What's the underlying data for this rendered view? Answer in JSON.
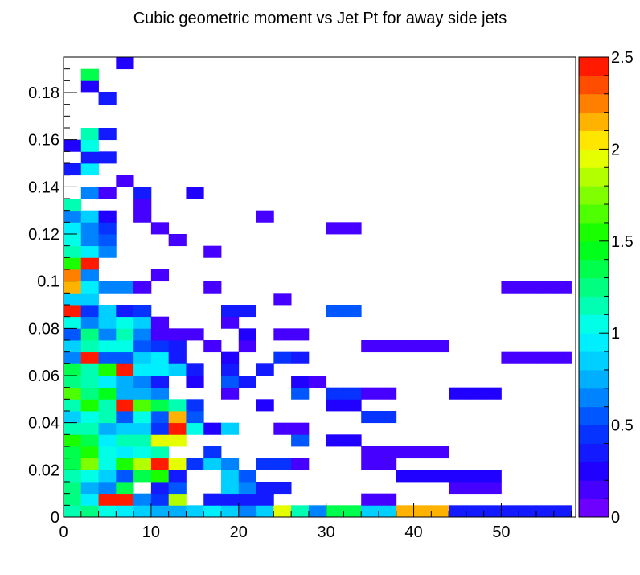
{
  "chart_data": {
    "type": "heatmap",
    "title": "Cubic geometric moment vs Jet Pt for away side jets",
    "xlabel": "",
    "ylabel": "",
    "xlim": [
      0,
      58.5
    ],
    "ylim": [
      0,
      0.195
    ],
    "x_bin_width": 2.0,
    "y_bin_width": 0.005,
    "z_range": [
      0,
      2.5
    ],
    "x_ticks": [
      "0",
      "10",
      "20",
      "30",
      "40",
      "50"
    ],
    "y_ticks": [
      "0",
      "0.02",
      "0.04",
      "0.06",
      "0.08",
      "0.1",
      "0.12",
      "0.14",
      "0.16",
      "0.18"
    ],
    "z_ticks": [
      "0",
      "0.5",
      "1",
      "1.5",
      "2",
      "2.5"
    ],
    "grid": false,
    "colorbar": "right",
    "cells": [
      [
        0,
        0,
        1.15
      ],
      [
        2,
        0,
        1.2
      ],
      [
        4,
        0,
        1.05
      ],
      [
        6,
        0,
        0.95
      ],
      [
        8,
        0,
        0.85
      ],
      [
        10,
        0,
        0.72
      ],
      [
        12,
        0,
        0.75
      ],
      [
        14,
        0,
        0.85
      ],
      [
        16,
        0,
        0.95
      ],
      [
        18,
        0,
        0.8
      ],
      [
        20,
        0,
        0.6
      ],
      [
        22,
        0,
        0.85
      ],
      [
        24,
        0,
        1.95
      ],
      [
        26,
        0,
        1.15
      ],
      [
        28,
        0,
        0.6
      ],
      [
        30,
        0,
        1.3
      ],
      [
        32,
        0,
        1.3
      ],
      [
        34,
        0,
        0.85
      ],
      [
        36,
        0,
        0.85
      ],
      [
        38,
        0,
        2.15
      ],
      [
        40,
        0,
        2.15
      ],
      [
        42,
        0,
        2.15
      ],
      [
        44,
        0,
        0.35
      ],
      [
        46,
        0,
        0.35
      ],
      [
        48,
        0,
        0.35
      ],
      [
        50,
        0,
        0.3
      ],
      [
        52,
        0,
        0.3
      ],
      [
        54,
        0,
        0.3
      ],
      [
        56,
        0,
        0.3
      ],
      [
        0,
        0.005,
        1.25
      ],
      [
        2,
        0.005,
        0.9
      ],
      [
        4,
        0.005,
        2.5
      ],
      [
        6,
        0.005,
        2.5
      ],
      [
        8,
        0.005,
        0.65
      ],
      [
        10,
        0.005,
        0.4
      ],
      [
        12,
        0.005,
        1.8
      ],
      [
        16,
        0.005,
        0.35
      ],
      [
        18,
        0.005,
        0.35
      ],
      [
        20,
        0.005,
        0.3
      ],
      [
        22,
        0.005,
        0.3
      ],
      [
        34,
        0.005,
        0.1
      ],
      [
        36,
        0.005,
        0.1
      ],
      [
        0,
        0.01,
        1.25
      ],
      [
        2,
        0.01,
        0.75
      ],
      [
        4,
        0.01,
        0.6
      ],
      [
        6,
        0.01,
        1.35
      ],
      [
        10,
        0.01,
        0.3
      ],
      [
        12,
        0.01,
        0.55
      ],
      [
        18,
        0.01,
        0.8
      ],
      [
        20,
        0.01,
        0.6
      ],
      [
        22,
        0.01,
        0.3
      ],
      [
        24,
        0.01,
        0.3
      ],
      [
        44,
        0.01,
        0.1
      ],
      [
        46,
        0.01,
        0.1
      ],
      [
        48,
        0.01,
        0.1
      ],
      [
        0,
        0.015,
        1.1
      ],
      [
        2,
        0.015,
        1.0
      ],
      [
        4,
        0.015,
        0.85
      ],
      [
        6,
        0.015,
        0.55
      ],
      [
        8,
        0.015,
        1.3
      ],
      [
        10,
        0.015,
        1.5
      ],
      [
        12,
        0.015,
        0.3
      ],
      [
        18,
        0.015,
        0.8
      ],
      [
        20,
        0.015,
        0.5
      ],
      [
        38,
        0.015,
        0.2
      ],
      [
        40,
        0.015,
        0.2
      ],
      [
        42,
        0.015,
        0.2
      ],
      [
        44,
        0.015,
        0.2
      ],
      [
        46,
        0.015,
        0.2
      ],
      [
        48,
        0.015,
        0.2
      ],
      [
        0,
        0.02,
        1.3
      ],
      [
        2,
        0.02,
        1.75
      ],
      [
        4,
        0.02,
        1.0
      ],
      [
        6,
        0.02,
        1.55
      ],
      [
        8,
        0.02,
        1.85
      ],
      [
        10,
        0.02,
        2.4
      ],
      [
        12,
        0.02,
        1.9
      ],
      [
        14,
        0.02,
        0.4
      ],
      [
        16,
        0.02,
        0.85
      ],
      [
        18,
        0.02,
        0.6
      ],
      [
        22,
        0.02,
        0.4
      ],
      [
        24,
        0.02,
        0.4
      ],
      [
        26,
        0.02,
        0.15
      ],
      [
        34,
        0.02,
        0.1
      ],
      [
        36,
        0.02,
        0.1
      ],
      [
        0,
        0.025,
        1.35
      ],
      [
        2,
        0.025,
        1.5
      ],
      [
        4,
        0.025,
        1.0
      ],
      [
        6,
        0.025,
        0.95
      ],
      [
        8,
        0.025,
        1.0
      ],
      [
        10,
        0.025,
        1.1
      ],
      [
        16,
        0.025,
        0.4
      ],
      [
        34,
        0.025,
        0.15
      ],
      [
        36,
        0.025,
        0.15
      ],
      [
        38,
        0.025,
        0.1
      ],
      [
        40,
        0.025,
        0.1
      ],
      [
        42,
        0.025,
        0.1
      ],
      [
        0,
        0.03,
        1.55
      ],
      [
        2,
        0.03,
        1.3
      ],
      [
        4,
        0.03,
        0.9
      ],
      [
        6,
        0.03,
        1.15
      ],
      [
        8,
        0.03,
        1.15
      ],
      [
        10,
        0.03,
        1.9
      ],
      [
        12,
        0.03,
        1.9
      ],
      [
        26,
        0.03,
        0.55
      ],
      [
        30,
        0.03,
        0.2
      ],
      [
        32,
        0.03,
        0.2
      ],
      [
        0,
        0.035,
        1.15
      ],
      [
        2,
        0.035,
        1.1
      ],
      [
        4,
        0.035,
        0.75
      ],
      [
        6,
        0.035,
        0.8
      ],
      [
        8,
        0.035,
        0.85
      ],
      [
        10,
        0.035,
        0.4
      ],
      [
        12,
        0.035,
        2.5
      ],
      [
        14,
        0.035,
        1.05
      ],
      [
        16,
        0.035,
        0.2
      ],
      [
        18,
        0.035,
        0.85
      ],
      [
        24,
        0.035,
        0.15
      ],
      [
        26,
        0.035,
        0.15
      ],
      [
        0,
        0.04,
        0.85
      ],
      [
        2,
        0.04,
        1.0
      ],
      [
        4,
        0.04,
        1.1
      ],
      [
        6,
        0.04,
        0.55
      ],
      [
        8,
        0.04,
        1.05
      ],
      [
        10,
        0.04,
        0.55
      ],
      [
        12,
        0.04,
        2.1
      ],
      [
        14,
        0.04,
        0.55
      ],
      [
        34,
        0.04,
        0.45
      ],
      [
        36,
        0.04,
        0.45
      ],
      [
        0,
        0.045,
        1.15
      ],
      [
        2,
        0.045,
        1.5
      ],
      [
        4,
        0.045,
        1.15
      ],
      [
        6,
        0.045,
        2.45
      ],
      [
        8,
        0.045,
        1.6
      ],
      [
        10,
        0.045,
        1.4
      ],
      [
        12,
        0.045,
        1.1
      ],
      [
        14,
        0.045,
        0.4
      ],
      [
        22,
        0.045,
        0.2
      ],
      [
        30,
        0.045,
        0.2
      ],
      [
        32,
        0.045,
        0.2
      ],
      [
        0,
        0.05,
        1.65
      ],
      [
        2,
        0.05,
        1.2
      ],
      [
        4,
        0.05,
        1.45
      ],
      [
        6,
        0.05,
        0.75
      ],
      [
        8,
        0.05,
        0.75
      ],
      [
        10,
        0.05,
        0.6
      ],
      [
        18,
        0.05,
        0.15
      ],
      [
        26,
        0.05,
        0.5
      ],
      [
        30,
        0.05,
        0.4
      ],
      [
        32,
        0.05,
        0.4
      ],
      [
        34,
        0.05,
        0.15
      ],
      [
        36,
        0.05,
        0.15
      ],
      [
        44,
        0.05,
        0.2
      ],
      [
        46,
        0.05,
        0.2
      ],
      [
        48,
        0.05,
        0.2
      ],
      [
        0,
        0.055,
        1.2
      ],
      [
        2,
        0.055,
        1.1
      ],
      [
        4,
        0.055,
        0.9
      ],
      [
        6,
        0.055,
        0.75
      ],
      [
        8,
        0.055,
        0.6
      ],
      [
        10,
        0.055,
        0.35
      ],
      [
        14,
        0.055,
        0.2
      ],
      [
        18,
        0.055,
        0.5
      ],
      [
        20,
        0.055,
        0.3
      ],
      [
        26,
        0.055,
        0.2
      ],
      [
        28,
        0.055,
        0.1
      ],
      [
        0,
        0.06,
        1.3
      ],
      [
        2,
        0.06,
        1.15
      ],
      [
        4,
        0.06,
        1.55
      ],
      [
        6,
        0.06,
        2.4
      ],
      [
        8,
        0.06,
        0.95
      ],
      [
        10,
        0.06,
        0.9
      ],
      [
        12,
        0.06,
        0.8
      ],
      [
        14,
        0.06,
        0.3
      ],
      [
        18,
        0.06,
        0.3
      ],
      [
        22,
        0.06,
        0.35
      ],
      [
        0,
        0.065,
        0.7
      ],
      [
        2,
        0.065,
        2.5
      ],
      [
        4,
        0.065,
        0.55
      ],
      [
        6,
        0.065,
        0.55
      ],
      [
        8,
        0.065,
        0.8
      ],
      [
        10,
        0.065,
        0.9
      ],
      [
        12,
        0.065,
        0.3
      ],
      [
        18,
        0.065,
        0.2
      ],
      [
        24,
        0.065,
        0.4
      ],
      [
        26,
        0.065,
        0.3
      ],
      [
        50,
        0.065,
        0.1
      ],
      [
        52,
        0.065,
        0.1
      ],
      [
        54,
        0.065,
        0.1
      ],
      [
        56,
        0.065,
        0.1
      ],
      [
        0,
        0.07,
        0.85
      ],
      [
        2,
        0.07,
        1.1
      ],
      [
        4,
        0.07,
        1.05
      ],
      [
        6,
        0.07,
        1.0
      ],
      [
        8,
        0.07,
        0.5
      ],
      [
        10,
        0.07,
        0.45
      ],
      [
        12,
        0.07,
        0.3
      ],
      [
        16,
        0.07,
        0.15
      ],
      [
        20,
        0.07,
        0.1
      ],
      [
        34,
        0.07,
        0.1
      ],
      [
        36,
        0.07,
        0.1
      ],
      [
        38,
        0.07,
        0.1
      ],
      [
        40,
        0.07,
        0.1
      ],
      [
        42,
        0.07,
        0.1
      ],
      [
        0,
        0.075,
        0.55
      ],
      [
        2,
        0.075,
        1.25
      ],
      [
        4,
        0.075,
        0.7
      ],
      [
        6,
        0.075,
        1.15
      ],
      [
        8,
        0.075,
        0.6
      ],
      [
        10,
        0.075,
        0.15
      ],
      [
        12,
        0.075,
        0.15
      ],
      [
        14,
        0.075,
        0.15
      ],
      [
        20,
        0.075,
        0.2
      ],
      [
        24,
        0.075,
        0.15
      ],
      [
        26,
        0.075,
        0.15
      ],
      [
        0,
        0.08,
        1.05
      ],
      [
        2,
        0.08,
        0.7
      ],
      [
        4,
        0.08,
        0.8
      ],
      [
        6,
        0.08,
        1.05
      ],
      [
        8,
        0.08,
        0.8
      ],
      [
        10,
        0.08,
        0.15
      ],
      [
        18,
        0.08,
        0.15
      ],
      [
        0,
        0.085,
        2.4
      ],
      [
        2,
        0.085,
        0.4
      ],
      [
        4,
        0.085,
        0.85
      ],
      [
        6,
        0.085,
        0.3
      ],
      [
        8,
        0.085,
        0.4
      ],
      [
        18,
        0.085,
        0.3
      ],
      [
        20,
        0.085,
        0.3
      ],
      [
        30,
        0.085,
        0.55
      ],
      [
        32,
        0.085,
        0.55
      ],
      [
        0,
        0.09,
        0.85
      ],
      [
        2,
        0.09,
        0.85
      ],
      [
        24,
        0.09,
        0.15
      ],
      [
        0,
        0.095,
        2.1
      ],
      [
        2,
        0.095,
        0.9
      ],
      [
        4,
        0.095,
        0.6
      ],
      [
        6,
        0.095,
        0.6
      ],
      [
        8,
        0.095,
        0.15
      ],
      [
        16,
        0.095,
        0.15
      ],
      [
        50,
        0.095,
        0.1
      ],
      [
        52,
        0.095,
        0.1
      ],
      [
        54,
        0.095,
        0.1
      ],
      [
        56,
        0.095,
        0.1
      ],
      [
        0,
        0.1,
        2.2
      ],
      [
        2,
        0.1,
        0.7
      ],
      [
        10,
        0.1,
        0.15
      ],
      [
        0,
        0.105,
        1.5
      ],
      [
        2,
        0.105,
        2.5
      ],
      [
        0,
        0.11,
        1.15
      ],
      [
        2,
        0.11,
        0.9
      ],
      [
        4,
        0.11,
        0.7
      ],
      [
        16,
        0.11,
        0.1
      ],
      [
        0,
        0.115,
        1.05
      ],
      [
        2,
        0.115,
        0.7
      ],
      [
        4,
        0.115,
        0.55
      ],
      [
        12,
        0.115,
        0.1
      ],
      [
        0,
        0.12,
        0.95
      ],
      [
        2,
        0.12,
        0.7
      ],
      [
        4,
        0.12,
        0.4
      ],
      [
        10,
        0.12,
        0.15
      ],
      [
        30,
        0.12,
        0.1
      ],
      [
        32,
        0.12,
        0.1
      ],
      [
        0,
        0.125,
        0.65
      ],
      [
        2,
        0.125,
        0.85
      ],
      [
        4,
        0.125,
        0.25
      ],
      [
        8,
        0.125,
        0.15
      ],
      [
        22,
        0.125,
        0.1
      ],
      [
        0,
        0.13,
        1.1
      ],
      [
        8,
        0.13,
        0.15
      ],
      [
        2,
        0.135,
        0.6
      ],
      [
        4,
        0.135,
        0.15
      ],
      [
        8,
        0.135,
        0.3
      ],
      [
        14,
        0.135,
        0.2
      ],
      [
        6,
        0.14,
        0.15
      ],
      [
        0,
        0.145,
        0.35
      ],
      [
        2,
        0.145,
        0.95
      ],
      [
        2,
        0.15,
        0.35
      ],
      [
        4,
        0.15,
        0.35
      ],
      [
        0,
        0.155,
        0.2
      ],
      [
        2,
        0.155,
        1.05
      ],
      [
        2,
        0.16,
        1.15
      ],
      [
        4,
        0.16,
        0.35
      ],
      [
        4,
        0.175,
        0.35
      ],
      [
        2,
        0.18,
        0.2
      ],
      [
        2,
        0.185,
        1.3
      ],
      [
        6,
        0.19,
        0.2
      ]
    ]
  }
}
